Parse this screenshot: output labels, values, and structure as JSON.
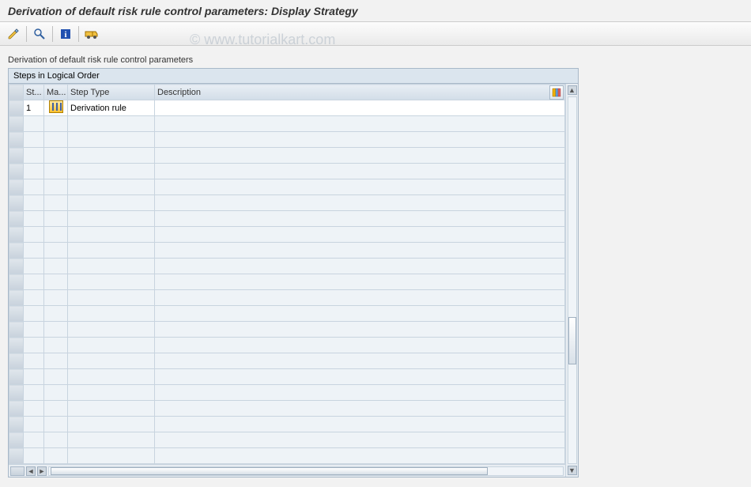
{
  "title": "Derivation of default risk rule control parameters: Display Strategy",
  "watermark": "© www.tutorialkart.com",
  "toolbar": {
    "buttons": [
      {
        "name": "edit-icon",
        "svg": "pencil"
      },
      {
        "name": "find-icon",
        "svg": "search"
      },
      {
        "name": "sep"
      },
      {
        "name": "info-icon",
        "svg": "info"
      },
      {
        "name": "sep"
      },
      {
        "name": "transport-icon",
        "svg": "truck"
      }
    ]
  },
  "subtitle": "Derivation of default risk rule control parameters",
  "grid": {
    "header": "Steps in Logical Order",
    "columns": {
      "step": "St...",
      "maint": "Ma...",
      "type": "Step Type",
      "desc": "Description"
    },
    "rows": [
      {
        "step": "1",
        "maint": true,
        "type": "Derivation rule",
        "desc": ""
      }
    ],
    "empty_rows": 22,
    "colors": {
      "header_bg": "#dbe5ee",
      "row_alt": "#eef3f7",
      "border": "#a8b8c8"
    }
  }
}
